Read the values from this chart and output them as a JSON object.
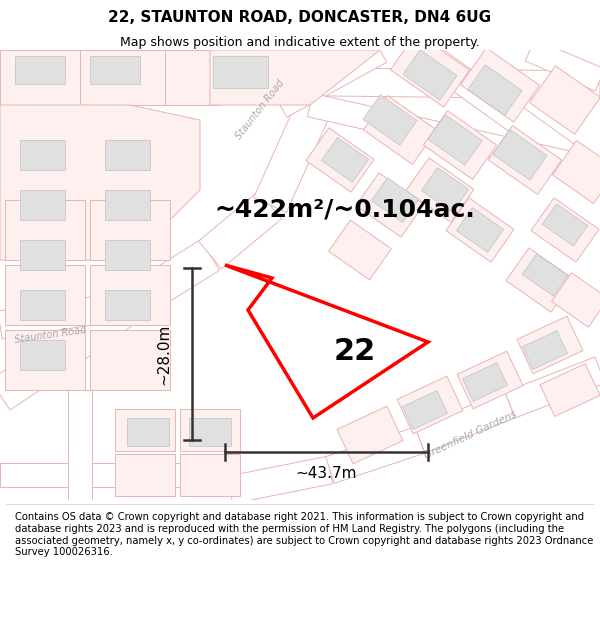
{
  "title": "22, STAUNTON ROAD, DONCASTER, DN4 6UG",
  "subtitle": "Map shows position and indicative extent of the property.",
  "area_label": "~422m²/~0.104ac.",
  "width_label": "~43.7m",
  "height_label": "~28.0m",
  "number_label": "22",
  "footer": "Contains OS data © Crown copyright and database right 2021. This information is subject to Crown copyright and database rights 2023 and is reproduced with the permission of HM Land Registry. The polygons (including the associated geometry, namely x, y co-ordinates) are subject to Crown copyright and database rights 2023 Ordnance Survey 100026316.",
  "map_bg": "#ffffff",
  "road_outline_color": "#e8b4b4",
  "road_fill_color": "#ffffff",
  "building_fill": "#e0e0e0",
  "building_outline": "#c8c8c8",
  "plot_outline_color": "#e8b4b4",
  "highlight_color": "#ff0000",
  "arrow_color": "#333333",
  "title_fontsize": 11,
  "subtitle_fontsize": 9,
  "area_fontsize": 18,
  "number_fontsize": 22,
  "dim_fontsize": 11,
  "footer_fontsize": 7.2
}
